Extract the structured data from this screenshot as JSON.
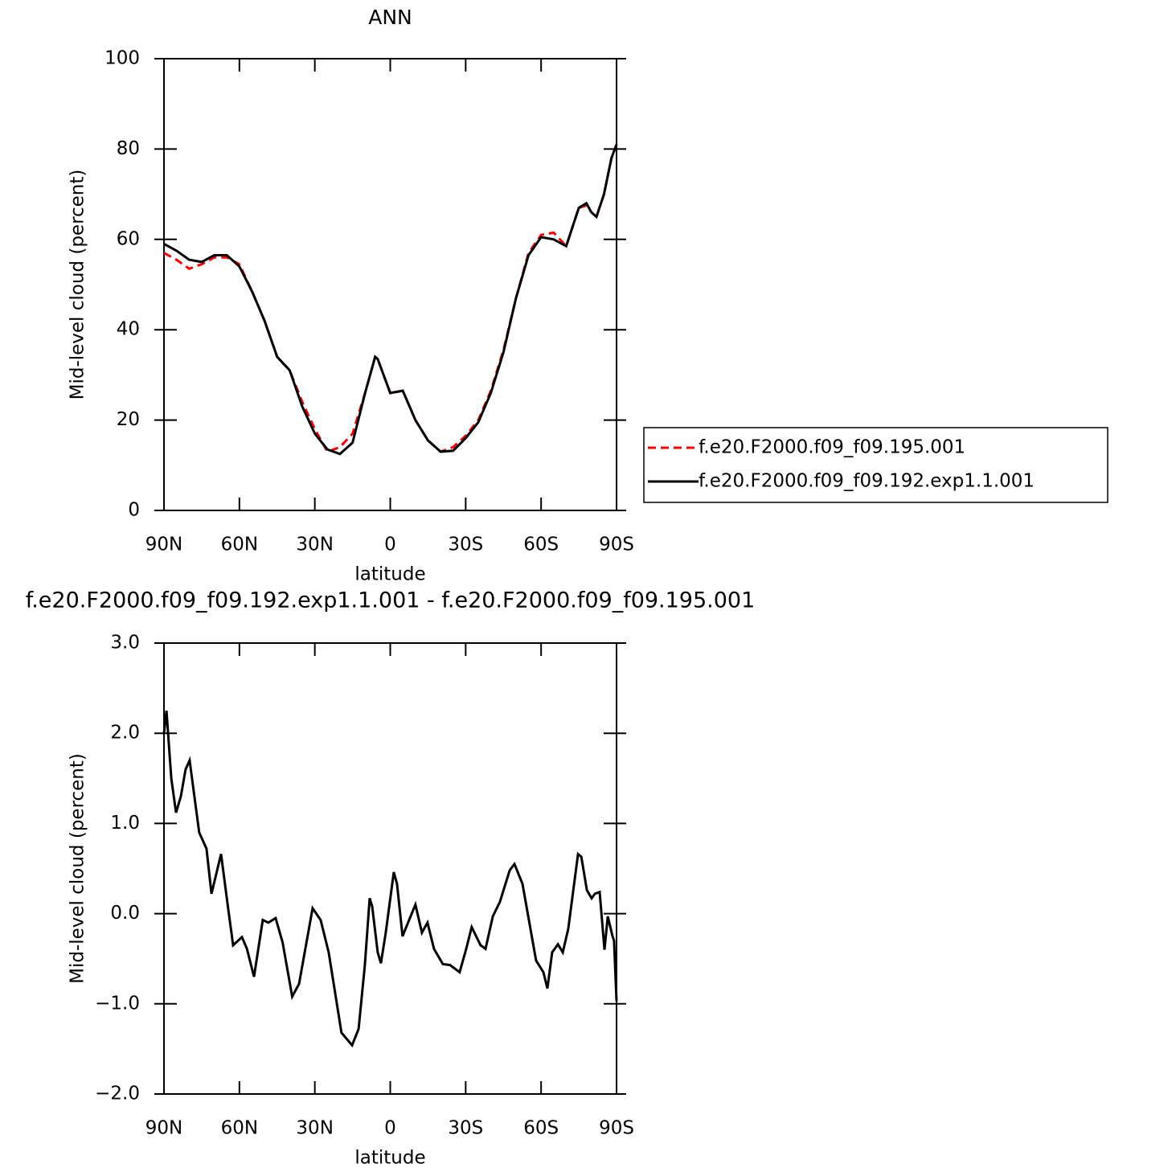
{
  "chart_data": [
    {
      "type": "line",
      "title": "ANN",
      "xlabel": "latitude",
      "ylabel": "Mid-level cloud (percent)",
      "xlim": [
        90,
        -90
      ],
      "ylim": [
        0,
        100
      ],
      "xticks": [
        {
          "value": 90,
          "label": "90N"
        },
        {
          "value": 60,
          "label": "60N"
        },
        {
          "value": 30,
          "label": "30N"
        },
        0,
        {
          "value": -30,
          "label": "30S"
        },
        {
          "value": -60,
          "label": "60S"
        },
        {
          "value": -90,
          "label": "90S"
        }
      ],
      "yticks": [
        0,
        20,
        40,
        60,
        80,
        100
      ],
      "x": [
        90,
        85,
        80,
        75,
        70,
        65,
        60,
        55,
        50,
        45,
        40,
        35,
        30,
        25,
        20,
        15,
        10,
        6,
        5,
        0,
        -5,
        -10,
        -15,
        -20,
        -25,
        -30,
        -35,
        -40,
        -45,
        -50,
        -55,
        -60,
        -65,
        -70,
        -75,
        -78,
        -80,
        -82,
        -85,
        -88,
        -90
      ],
      "series": [
        {
          "name": "f.e20.F2000.f09_f09.195.001",
          "color": "#ff0000",
          "dash": true,
          "values": [
            57,
            55.5,
            53.5,
            54.5,
            56,
            56,
            54.5,
            48.5,
            42,
            34,
            31,
            24,
            18,
            13,
            14,
            17,
            26,
            34,
            33.5,
            26,
            26.5,
            20,
            15.5,
            13,
            14,
            16.5,
            20,
            26.5,
            35.5,
            47,
            57,
            61,
            61.5,
            58.5,
            67,
            67.5,
            66,
            65,
            70,
            78,
            81
          ]
        },
        {
          "name": "f.e20.F2000.f09_f09.192.exp1.1.001",
          "color": "#000000",
          "dash": false,
          "values": [
            59,
            57.5,
            55.5,
            55,
            56.5,
            56.5,
            54,
            48.5,
            42,
            34,
            31,
            23,
            17,
            13.5,
            12.5,
            15,
            26,
            34,
            33.5,
            26,
            26.5,
            20,
            15.5,
            13,
            13.2,
            16,
            19.5,
            26,
            35,
            47,
            56.5,
            60.5,
            60,
            58.5,
            67,
            68,
            66,
            65,
            70,
            78,
            81
          ]
        }
      ]
    },
    {
      "type": "line",
      "title": "f.e20.F2000.f09_f09.192.exp1.1.001 - f.e20.F2000.f09_f09.195.001",
      "xlabel": "latitude",
      "ylabel": "Mid-level cloud (percent)",
      "xlim": [
        90,
        -90
      ],
      "ylim": [
        -2,
        3
      ],
      "xticks": [
        {
          "value": 90,
          "label": "90N"
        },
        {
          "value": 60,
          "label": "60N"
        },
        {
          "value": 30,
          "label": "30N"
        },
        0,
        {
          "value": -30,
          "label": "30S"
        },
        {
          "value": -60,
          "label": "60S"
        },
        {
          "value": -90,
          "label": "90S"
        }
      ],
      "yticks": [
        {
          "value": -2,
          "label": "−2.0"
        },
        {
          "value": -1,
          "label": "−1.0"
        },
        {
          "value": 0,
          "label": "0.0"
        },
        {
          "value": 1,
          "label": "1.0"
        },
        {
          "value": 2,
          "label": "2.0"
        },
        {
          "value": 3,
          "label": "3.0"
        }
      ],
      "x": [
        90,
        89,
        87.1,
        85.2,
        83.3,
        81.4,
        79.8,
        76,
        73.1,
        71.1,
        67.3,
        64.4,
        62.5,
        59,
        57,
        54.2,
        50.7,
        48.5,
        45.6,
        42.8,
        39,
        36.3,
        30.9,
        27.7,
        24.5,
        19.4,
        15.2,
        12.6,
        10.1,
        8.2,
        7.2,
        5,
        3.7,
        1.8,
        -1.4,
        -2.7,
        -4.9,
        -7.8,
        -10,
        -12.6,
        -14.8,
        -17.4,
        -20.9,
        -23.8,
        -27.6,
        -30.2,
        -32.4,
        -35.9,
        -37.9,
        -40.8,
        -43.6,
        -47.5,
        -49.4,
        -52.6,
        -58,
        -60.9,
        -62.5,
        -64.4,
        -66.7,
        -68.6,
        -70.8,
        -74.7,
        -76,
        -78.2,
        -80.1,
        -81.4,
        -83.3,
        -85.2,
        -86.5,
        -88.4,
        -89,
        -90
      ],
      "series": [
        {
          "color": "#000000",
          "dash": false,
          "values": [
            2.0,
            2.25,
            1.5,
            1.12,
            1.3,
            1.6,
            1.7,
            0.9,
            0.72,
            0.22,
            0.66,
            0.04,
            -0.35,
            -0.26,
            -0.39,
            -0.7,
            -0.07,
            -0.1,
            -0.05,
            -0.32,
            -0.92,
            -0.78,
            0.06,
            -0.07,
            -0.43,
            -1.32,
            -1.46,
            -1.28,
            -0.57,
            0.17,
            0.08,
            -0.43,
            -0.55,
            -0.21,
            0.46,
            0.33,
            -0.25,
            -0.05,
            0.1,
            -0.21,
            -0.1,
            -0.39,
            -0.56,
            -0.57,
            -0.65,
            -0.39,
            -0.15,
            -0.35,
            -0.39,
            -0.03,
            0.13,
            0.48,
            0.55,
            0.33,
            -0.52,
            -0.65,
            -0.83,
            -0.43,
            -0.34,
            -0.43,
            -0.17,
            0.66,
            0.63,
            0.26,
            0.17,
            0.22,
            0.24,
            -0.4,
            -0.03,
            -0.25,
            -0.3,
            -0.97
          ]
        }
      ]
    }
  ]
}
